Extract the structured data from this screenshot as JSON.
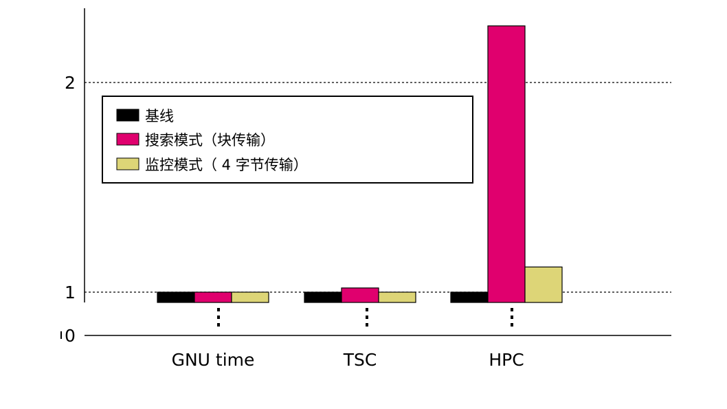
{
  "chart_data": {
    "type": "bar",
    "categories": [
      "GNU time",
      "TSC",
      "HPC"
    ],
    "series": [
      {
        "name": "基线",
        "values": [
          1.0,
          1.0,
          1.0
        ],
        "color": "#000000"
      },
      {
        "name": "搜索模式（块传输）",
        "values": [
          1.0,
          1.02,
          2.27
        ],
        "color": "#e0006e"
      },
      {
        "name": "监控模式（ 4  字节传输）",
        "values": [
          1.0,
          1.0,
          1.12
        ],
        "color": "#ddd577"
      }
    ],
    "y_ticks": [
      "0",
      "1",
      "2"
    ],
    "y_axis": {
      "broken": true,
      "ylim": [
        0,
        2.3
      ]
    },
    "grid": "dotted lines at y = 1 and y = 2",
    "legend_position": "upper-left",
    "title": "",
    "xlabel": "",
    "ylabel": ""
  }
}
